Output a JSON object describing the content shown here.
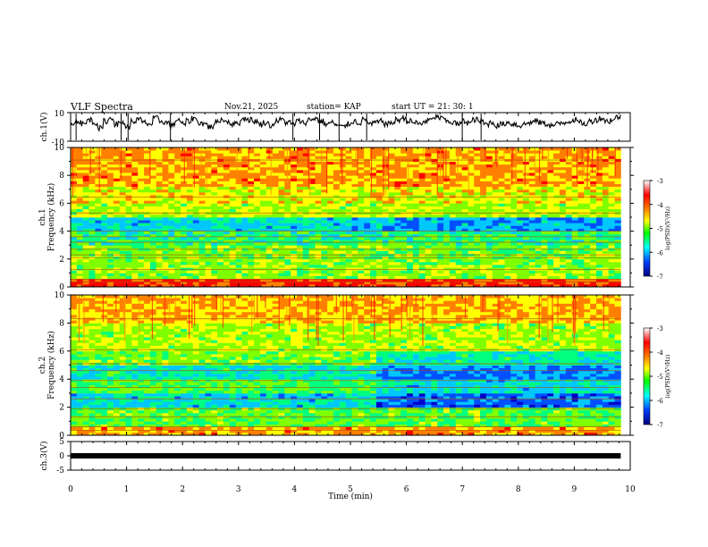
{
  "header": {
    "title": "VLF Spectra",
    "date": "Nov.21, 2025",
    "station": "station= KAP",
    "start": "start  UT  =   21: 30: 1"
  },
  "chart_data": [
    {
      "type": "line",
      "name": "ch1-voltage",
      "ylabel": "ch.1(V)",
      "ylim": [
        -10,
        10
      ],
      "ytick_labels": [
        "10",
        "-10"
      ],
      "xlim": [
        0,
        10
      ],
      "data_end_min": 9.83,
      "series_description": "noisy waveform around +2 V",
      "sampled_values": [
        3,
        4,
        2,
        5,
        3,
        -1,
        4,
        6,
        2,
        3,
        0,
        4,
        5,
        3,
        2,
        6,
        4,
        3,
        1,
        5,
        2,
        4,
        6,
        3,
        2,
        0,
        3,
        5,
        4,
        2,
        3,
        6,
        5,
        4,
        2,
        3,
        1,
        4,
        5,
        3,
        2,
        4,
        3,
        5,
        6,
        4,
        2,
        3,
        1,
        0,
        2,
        4,
        3,
        5,
        2,
        3,
        4,
        2,
        3,
        5,
        6,
        4,
        3,
        2,
        4,
        5,
        7,
        6,
        4,
        3,
        2,
        4,
        3,
        5,
        4,
        2,
        3,
        1,
        2,
        3,
        2,
        1,
        2,
        3,
        4,
        3,
        2,
        1,
        2,
        3,
        4,
        5,
        3,
        2,
        4,
        5,
        6,
        4,
        5,
        7
      ]
    },
    {
      "type": "heatmap",
      "name": "ch1-spectrogram",
      "ylabel_line1": "ch.1",
      "ylabel_line2": "Frequency (kHz)",
      "ylim": [
        0,
        10
      ],
      "yticks": [
        0,
        2,
        4,
        6,
        8,
        10
      ],
      "xlim": [
        0,
        10
      ],
      "data_end_min": 9.83,
      "colorbar_label": "log(PSD)(V²/Hz)",
      "colorbar_ticks": [
        "-3",
        "-4",
        "-5",
        "-6",
        "-7"
      ],
      "band_log_psd": [
        {
          "from_khz": 0.0,
          "to_khz": 0.6,
          "log_psd": -3.4
        },
        {
          "from_khz": 0.6,
          "to_khz": 2.0,
          "log_psd": -4.7
        },
        {
          "from_khz": 2.0,
          "to_khz": 3.0,
          "log_psd": -4.8
        },
        {
          "from_khz": 3.0,
          "to_khz": 4.0,
          "log_psd": -5.2
        },
        {
          "from_khz": 4.0,
          "to_khz": 5.0,
          "log_psd": -5.6
        },
        {
          "from_khz": 5.0,
          "to_khz": 6.0,
          "log_psd": -4.6
        },
        {
          "from_khz": 6.0,
          "to_khz": 7.2,
          "log_psd": -4.3
        },
        {
          "from_khz": 7.2,
          "to_khz": 10.0,
          "log_psd": -3.9
        }
      ]
    },
    {
      "type": "heatmap",
      "name": "ch2-spectrogram",
      "ylabel_line1": "ch.2",
      "ylabel_line2": "Frequency (kHz)",
      "ylim": [
        0,
        10
      ],
      "yticks": [
        0,
        2,
        4,
        6,
        8,
        10
      ],
      "xlim": [
        0,
        10
      ],
      "data_end_min": 9.83,
      "colorbar_label": "log(PSD)(V²/Hz)",
      "colorbar_ticks": [
        "-3",
        "-4",
        "-5",
        "-6",
        "-7"
      ],
      "band_log_psd": [
        {
          "from_khz": 0.0,
          "to_khz": 0.6,
          "log_psd": -3.9
        },
        {
          "from_khz": 0.6,
          "to_khz": 2.0,
          "log_psd": -4.9
        },
        {
          "from_khz": 2.0,
          "to_khz": 3.0,
          "log_psd": -5.6
        },
        {
          "from_khz": 3.0,
          "to_khz": 4.0,
          "log_psd": -5.0
        },
        {
          "from_khz": 4.0,
          "to_khz": 5.0,
          "log_psd": -5.4
        },
        {
          "from_khz": 5.0,
          "to_khz": 6.0,
          "log_psd": -4.8
        },
        {
          "from_khz": 6.0,
          "to_khz": 8.0,
          "log_psd": -4.6
        },
        {
          "from_khz": 8.0,
          "to_khz": 10.0,
          "log_psd": -4.0
        }
      ]
    },
    {
      "type": "line",
      "name": "ch3-voltage",
      "ylabel": "ch.3(V)",
      "ylim": [
        -5,
        5
      ],
      "ytick_labels": [
        "5",
        "0",
        "-5"
      ],
      "xlim": [
        0,
        10
      ],
      "data_end_min": 9.83,
      "series_description": "nearly constant around 0 V",
      "constant_value": 0
    }
  ],
  "xaxis": {
    "label": "Time (min)",
    "ticks": [
      "0",
      "1",
      "2",
      "3",
      "4",
      "5",
      "6",
      "7",
      "8",
      "9",
      "10"
    ]
  },
  "colors": {
    "colormap": [
      "#0000c8",
      "#0050ff",
      "#00c8ff",
      "#00ff7f",
      "#7fff00",
      "#ffff00",
      "#ff8000",
      "#ff0000"
    ]
  }
}
